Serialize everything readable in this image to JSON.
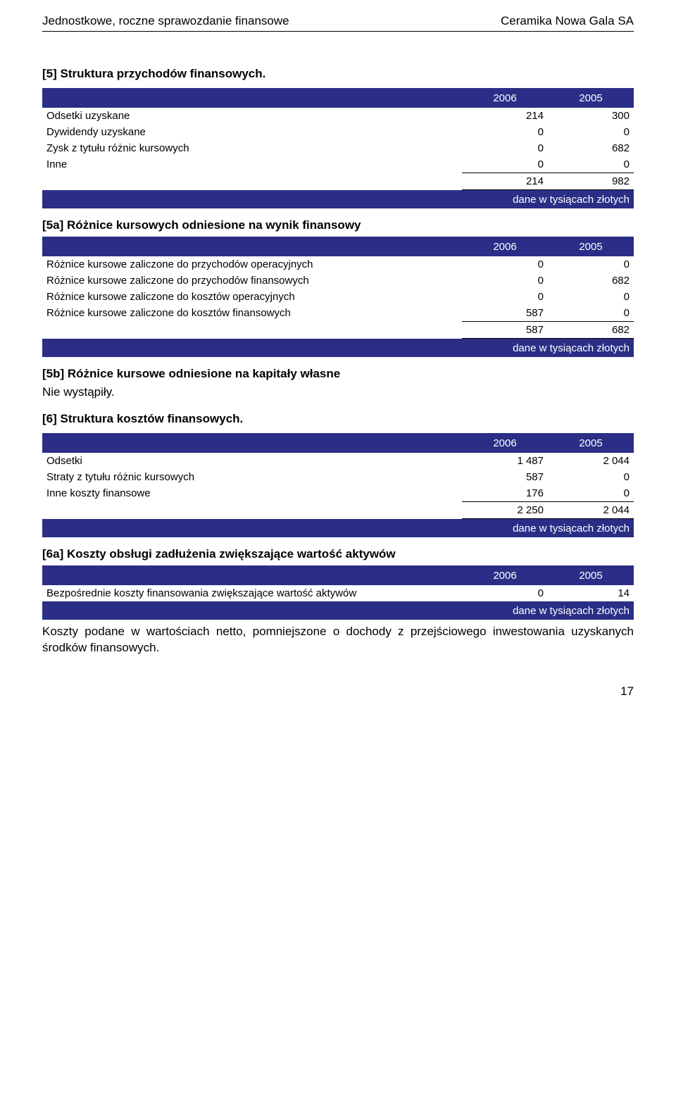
{
  "header": {
    "left": "Jednostkowe, roczne sprawozdanie finansowe",
    "right": "Ceramika Nowa Gala SA"
  },
  "section5": {
    "title": "[5] Struktura przychodów finansowych.",
    "years": [
      "2006",
      "2005"
    ],
    "rows": [
      {
        "label": "Odsetki uzyskane",
        "v": [
          "214",
          "300"
        ]
      },
      {
        "label": "Dywidendy uzyskane",
        "v": [
          "0",
          "0"
        ]
      },
      {
        "label": "Zysk z tytułu różnic kursowych",
        "v": [
          "0",
          "682"
        ]
      },
      {
        "label": "Inne",
        "v": [
          "0",
          "0"
        ]
      }
    ],
    "total": [
      "214",
      "982"
    ],
    "caption": "dane w tysiącach złotych"
  },
  "section5a": {
    "title": "[5a]   Różnice kursowych odniesione na wynik finansowy",
    "years": [
      "2006",
      "2005"
    ],
    "rows": [
      {
        "label": "Różnice kursowe zaliczone do przychodów operacyjnych",
        "v": [
          "0",
          "0"
        ]
      },
      {
        "label": "Różnice kursowe zaliczone do przychodów finansowych",
        "v": [
          "0",
          "682"
        ]
      },
      {
        "label": "Różnice kursowe zaliczone do kosztów operacyjnych",
        "v": [
          "0",
          "0"
        ]
      },
      {
        "label": "Różnice kursowe zaliczone do kosztów finansowych",
        "v": [
          "587",
          "0"
        ]
      }
    ],
    "total": [
      "587",
      "682"
    ],
    "caption": "dane w tysiącach złotych"
  },
  "section5b": {
    "title": "[5b]   Różnice kursowe odniesione na kapitały własne",
    "text": "Nie wystąpiły."
  },
  "section6": {
    "title": "[6] Struktura kosztów finansowych.",
    "years": [
      "2006",
      "2005"
    ],
    "rows": [
      {
        "label": "Odsetki",
        "v": [
          "1 487",
          "2 044"
        ]
      },
      {
        "label": "Straty z tytułu różnic kursowych",
        "v": [
          "587",
          "0"
        ]
      },
      {
        "label": "Inne koszty finansowe",
        "v": [
          "176",
          "0"
        ]
      }
    ],
    "total": [
      "2 250",
      "2 044"
    ],
    "caption": "dane w tysiącach złotych"
  },
  "section6a": {
    "title": "[6a]   Koszty obsługi zadłużenia zwiększające wartość aktywów",
    "years": [
      "2006",
      "2005"
    ],
    "rows": [
      {
        "label": "Bezpośrednie koszty finansowania zwiększające wartość aktywów",
        "v": [
          "0",
          "14"
        ]
      }
    ],
    "caption": "dane w tysiącach złotych",
    "body": "Koszty podane w wartościach netto, pomniejszone o dochody z przejściowego inwestowania uzyskanych środków finansowych."
  },
  "page": "17",
  "colors": {
    "band": "#2a2e86",
    "text_on_band": "#ffffff"
  }
}
